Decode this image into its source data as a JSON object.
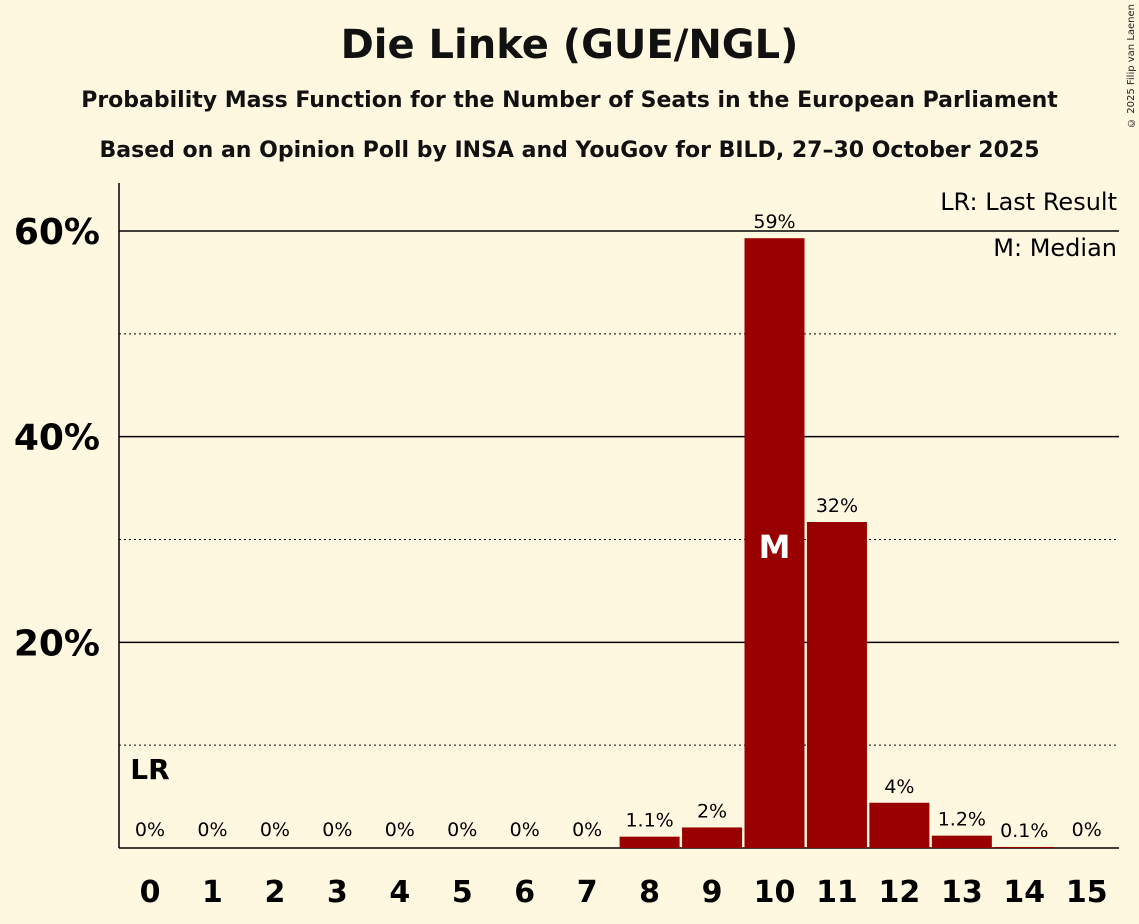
{
  "copyright": "© 2025 Filip van Laenen",
  "chart_data": {
    "type": "bar",
    "title": "Die Linke (GUE/NGL)",
    "subtitle1": "Probability Mass Function for the Number of Seats in the European Parliament",
    "subtitle2": "Based on an Opinion Poll by INSA and YouGov for BILD, 27–30 October 2025",
    "categories": [
      "0",
      "1",
      "2",
      "3",
      "4",
      "5",
      "6",
      "7",
      "8",
      "9",
      "10",
      "11",
      "12",
      "13",
      "14",
      "15"
    ],
    "values": [
      0,
      0,
      0,
      0,
      0,
      0,
      0,
      0,
      1.1,
      2,
      59.3,
      31.7,
      4.4,
      1.2,
      0.1,
      0
    ],
    "labels": [
      "0%",
      "0%",
      "0%",
      "0%",
      "0%",
      "0%",
      "0%",
      "0%",
      "1.1%",
      "2%",
      "59%",
      "32%",
      "4%",
      "1.2%",
      "0.1%",
      "0%"
    ],
    "ylim": [
      0,
      65
    ],
    "yticks": [
      {
        "v": 20,
        "label": "20%"
      },
      {
        "v": 40,
        "label": "40%"
      },
      {
        "v": 60,
        "label": "60%"
      }
    ],
    "minor_grid": [
      10,
      30,
      50
    ],
    "bar_color": "#990000",
    "last_result_index": 0,
    "last_result_marker": "LR",
    "median_index": 10,
    "median_marker": "M",
    "legend": [
      "LR: Last Result",
      "M: Median"
    ],
    "legend_placement": "top-right"
  }
}
